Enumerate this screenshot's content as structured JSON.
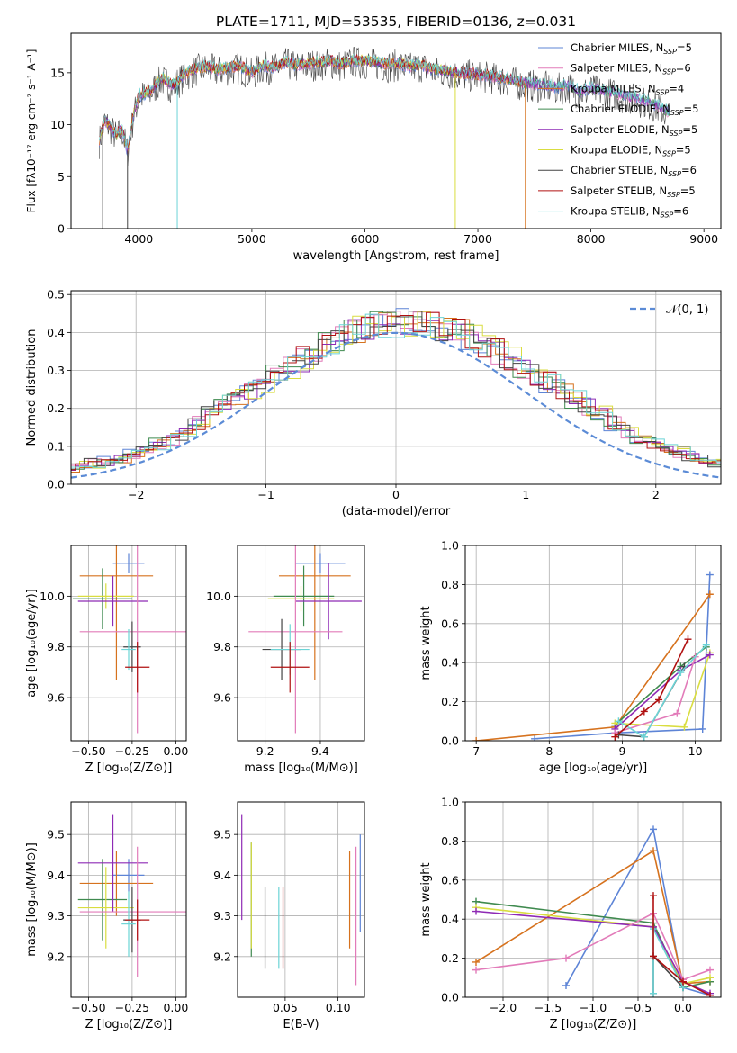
{
  "chart_data": [
    {
      "id": "spectrum",
      "type": "line",
      "title": "PLATE=1711, MJD=53535, FIBERID=0136, z=0.031",
      "xlabel": "wavelength [Angstrom, rest frame]",
      "ylabel": "Flux [fλ10⁻¹⁷ erg cm⁻² s⁻¹ A⁻¹]",
      "xlim": [
        3400,
        9150
      ],
      "ylim": [
        0,
        18.8
      ],
      "xticks": [
        4000,
        5000,
        6000,
        7000,
        8000,
        9000
      ],
      "yticks": [
        0,
        5,
        10,
        15
      ],
      "grid": false,
      "legend_position": "right",
      "legend": [
        {
          "label": "Chabrier MILES, N_SSP=5",
          "color": "#5d84d6"
        },
        {
          "label": "Salpeter MILES, N_SSP=6",
          "color": "#e27bb9"
        },
        {
          "label": "Kroupa MILES, N_SSP=4",
          "color": "#d6721e"
        },
        {
          "label": "Chabrier ELODIE, N_SSP=5",
          "color": "#3f8a4f"
        },
        {
          "label": "Salpeter ELODIE, N_SSP=5",
          "color": "#8e2ab5"
        },
        {
          "label": "Kroupa ELODIE, N_SSP=5",
          "color": "#d9dd40"
        },
        {
          "label": "Chabrier STELIB, N_SSP=6",
          "color": "#444444"
        },
        {
          "label": "Salpeter STELIB, N_SSP=5",
          "color": "#b01010"
        },
        {
          "label": "Kroupa STELIB, N_SSP=6",
          "color": "#6cd4d6"
        }
      ],
      "x": [
        3650,
        3700,
        3750,
        3800,
        3850,
        3900,
        3950,
        4000,
        4100,
        4200,
        4300,
        4400,
        4500,
        4600,
        4700,
        4800,
        4900,
        5000,
        5100,
        5200,
        5300,
        5400,
        5500,
        5600,
        5700,
        5800,
        5900,
        6000,
        6100,
        6200,
        6300,
        6400,
        6500,
        6600,
        6700,
        6800,
        6900,
        7000,
        7100,
        7200,
        7300,
        7400,
        7500,
        7600,
        7700,
        7800,
        7900,
        8000,
        8100,
        8200,
        8300,
        8400,
        8500,
        8600,
        8700
      ],
      "y": [
        8.5,
        10.5,
        9.8,
        9.0,
        9.6,
        7.5,
        10.8,
        12.8,
        13.2,
        14.5,
        13.8,
        14.8,
        15.4,
        15.6,
        15.3,
        15.5,
        15.6,
        15.0,
        15.7,
        15.5,
        16.0,
        15.7,
        15.9,
        16.0,
        16.1,
        15.8,
        16.2,
        16.1,
        16.0,
        15.8,
        15.9,
        15.6,
        15.8,
        15.3,
        15.2,
        15.0,
        14.9,
        14.8,
        14.7,
        14.5,
        14.3,
        14.0,
        13.9,
        13.8,
        13.6,
        13.8,
        13.2,
        13.5,
        13.3,
        13.1,
        12.8,
        12.6,
        12.2,
        11.8,
        11.0
      ],
      "dropouts": [
        {
          "x": 3680,
          "color": "#444444"
        },
        {
          "x": 3900,
          "color": "#444444"
        },
        {
          "x": 4340,
          "color": "#6cd4d6"
        },
        {
          "x": 6800,
          "color": "#d9dd40"
        },
        {
          "x": 7420,
          "color": "#d6721e"
        }
      ]
    },
    {
      "id": "residuals",
      "type": "step",
      "xlabel": "(data-model)/error",
      "ylabel": "Normed distribution",
      "xlim": [
        -2.5,
        2.5
      ],
      "ylim": [
        0,
        0.51
      ],
      "xticks": [
        -2,
        -1,
        0,
        1,
        2
      ],
      "yticks": [
        0.0,
        0.1,
        0.2,
        0.3,
        0.4,
        0.5
      ],
      "grid": true,
      "legend_position": "top-right",
      "legend": [
        {
          "label": "𝒩(0, 1)",
          "color": "#5b8bd6",
          "style": "dashed"
        }
      ],
      "bin_width": 0.1,
      "base_heights": [
        0.015,
        0.02,
        0.025,
        0.03,
        0.04,
        0.05,
        0.055,
        0.06,
        0.07,
        0.08,
        0.095,
        0.105,
        0.12,
        0.135,
        0.16,
        0.185,
        0.21,
        0.225,
        0.25,
        0.27,
        0.29,
        0.31,
        0.33,
        0.35,
        0.37,
        0.39,
        0.405,
        0.415,
        0.42,
        0.425,
        0.425,
        0.425,
        0.42,
        0.415,
        0.405,
        0.39,
        0.37,
        0.35,
        0.33,
        0.31,
        0.29,
        0.27,
        0.25,
        0.225,
        0.205,
        0.185,
        0.16,
        0.14,
        0.125,
        0.11,
        0.095,
        0.085,
        0.075,
        0.065,
        0.055,
        0.05,
        0.04,
        0.035,
        0.03,
        0.025
      ],
      "gaussian_mu": 0,
      "gaussian_sigma": 1
    },
    {
      "id": "age_vs_Z",
      "type": "errorbar",
      "xlabel": "Z [log₁₀(Z/Z⊙)]",
      "ylabel": "age  [log₁₀(age/yr)]",
      "xlim": [
        -0.6,
        0.06
      ],
      "ylim": [
        9.43,
        10.2
      ],
      "xticks": [
        -0.5,
        -0.25,
        0.0
      ],
      "yticks": [
        9.6,
        9.8,
        10.0
      ],
      "grid": true,
      "points": [
        {
          "x": -0.27,
          "y": 10.13,
          "xerr": 0.09,
          "yerr": 0.04,
          "color": "#5d84d6"
        },
        {
          "x": -0.34,
          "y": 10.08,
          "xerr": 0.21,
          "yerr": 0.41,
          "color": "#d6721e"
        },
        {
          "x": -0.42,
          "y": 9.99,
          "xerr": 0.17,
          "yerr": 0.12,
          "color": "#3f8a4f"
        },
        {
          "x": -0.4,
          "y": 10.0,
          "xerr": 0.16,
          "yerr": 0.05,
          "color": "#d9dd40"
        },
        {
          "x": -0.36,
          "y": 9.98,
          "xerr": 0.2,
          "yerr": 0.1,
          "color": "#8e2ab5"
        },
        {
          "x": -0.22,
          "y": 9.86,
          "xerr": 0.33,
          "yerr": 0.4,
          "color": "#e27bb9"
        },
        {
          "x": -0.25,
          "y": 9.8,
          "xerr": 0.05,
          "yerr": 0.1,
          "color": "#444444"
        },
        {
          "x": -0.27,
          "y": 9.79,
          "xerr": 0.04,
          "yerr": 0.08,
          "color": "#6cd4d6"
        },
        {
          "x": -0.22,
          "y": 9.72,
          "xerr": 0.07,
          "yerr": 0.1,
          "color": "#b01010"
        }
      ]
    },
    {
      "id": "age_vs_mass",
      "type": "errorbar",
      "xlabel": "mass [log₁₀(M/M⊙)]",
      "ylabel": "",
      "xlim": [
        9.1,
        9.56
      ],
      "ylim": [
        9.43,
        10.2
      ],
      "xticks": [
        9.2,
        9.4
      ],
      "yticks": [
        9.6,
        9.8,
        10.0
      ],
      "grid": true,
      "points": [
        {
          "x": 9.4,
          "y": 10.13,
          "xerr": 0.09,
          "yerr": 0.04,
          "color": "#5d84d6"
        },
        {
          "x": 9.38,
          "y": 10.08,
          "xerr": 0.13,
          "yerr": 0.41,
          "color": "#d6721e"
        },
        {
          "x": 9.34,
          "y": 10.0,
          "xerr": 0.11,
          "yerr": 0.12,
          "color": "#3f8a4f"
        },
        {
          "x": 9.33,
          "y": 9.99,
          "xerr": 0.12,
          "yerr": 0.05,
          "color": "#d9dd40"
        },
        {
          "x": 9.43,
          "y": 9.98,
          "xerr": 0.12,
          "yerr": 0.15,
          "color": "#8e2ab5"
        },
        {
          "x": 9.31,
          "y": 9.86,
          "xerr": 0.17,
          "yerr": 0.4,
          "color": "#e27bb9"
        },
        {
          "x": 9.26,
          "y": 9.79,
          "xerr": 0.07,
          "yerr": 0.12,
          "color": "#444444"
        },
        {
          "x": 9.29,
          "y": 9.79,
          "xerr": 0.07,
          "yerr": 0.1,
          "color": "#6cd4d6"
        },
        {
          "x": 9.29,
          "y": 9.72,
          "xerr": 0.07,
          "yerr": 0.1,
          "color": "#b01010"
        }
      ]
    },
    {
      "id": "massweight_vs_age",
      "type": "line",
      "xlabel": "age  [log₁₀(age/yr)]",
      "ylabel": "mass weight",
      "xlim": [
        6.85,
        10.35
      ],
      "ylim": [
        0,
        1.0
      ],
      "xticks": [
        7,
        8,
        9,
        10
      ],
      "yticks": [
        0.0,
        0.2,
        0.4,
        0.6,
        0.8,
        1.0
      ],
      "grid": true,
      "series": [
        {
          "color": "#5d84d6",
          "x": [
            7.8,
            8.9,
            10.1,
            10.2
          ],
          "y": [
            0.01,
            0.04,
            0.06,
            0.85
          ]
        },
        {
          "color": "#d6721e",
          "x": [
            7.0,
            8.9,
            10.2
          ],
          "y": [
            0.0,
            0.07,
            0.75
          ]
        },
        {
          "color": "#3f8a4f",
          "x": [
            8.9,
            9.8,
            10.15
          ],
          "y": [
            0.08,
            0.38,
            0.48
          ]
        },
        {
          "color": "#d9dd40",
          "x": [
            8.9,
            9.85,
            10.2
          ],
          "y": [
            0.09,
            0.07,
            0.45
          ]
        },
        {
          "color": "#8e2ab5",
          "x": [
            8.9,
            9.8,
            10.2
          ],
          "y": [
            0.06,
            0.36,
            0.44
          ]
        },
        {
          "color": "#e27bb9",
          "x": [
            8.9,
            9.75,
            10.0
          ],
          "y": [
            0.04,
            0.14,
            0.43
          ]
        },
        {
          "color": "#444444",
          "x": [
            8.95,
            9.3,
            9.85
          ],
          "y": [
            0.03,
            0.02,
            0.38
          ]
        },
        {
          "color": "#6cd4d6",
          "x": [
            8.95,
            9.3,
            9.8,
            10.15
          ],
          "y": [
            0.1,
            0.02,
            0.35,
            0.49
          ]
        },
        {
          "color": "#b01010",
          "x": [
            8.9,
            9.3,
            9.5,
            9.9
          ],
          "y": [
            0.02,
            0.15,
            0.21,
            0.52
          ]
        }
      ]
    },
    {
      "id": "mass_vs_Z",
      "type": "errorbar",
      "xlabel": "Z [log₁₀(Z/Z⊙)]",
      "ylabel": "mass [log₁₀(M/M⊙)]",
      "xlim": [
        -0.6,
        0.06
      ],
      "ylim": [
        9.1,
        9.58
      ],
      "xticks": [
        -0.5,
        -0.25,
        0.0
      ],
      "yticks": [
        9.2,
        9.3,
        9.4,
        9.5
      ],
      "grid": true,
      "points": [
        {
          "x": -0.27,
          "y": 9.4,
          "xerr": 0.09,
          "yerr": 0.04,
          "color": "#5d84d6"
        },
        {
          "x": -0.34,
          "y": 9.38,
          "xerr": 0.21,
          "yerr": 0.08,
          "color": "#d6721e"
        },
        {
          "x": -0.42,
          "y": 9.34,
          "xerr": 0.14,
          "yerr": 0.1,
          "color": "#3f8a4f"
        },
        {
          "x": -0.4,
          "y": 9.32,
          "xerr": 0.16,
          "yerr": 0.1,
          "color": "#d9dd40"
        },
        {
          "x": -0.36,
          "y": 9.43,
          "xerr": 0.2,
          "yerr": 0.12,
          "color": "#8e2ab5"
        },
        {
          "x": -0.22,
          "y": 9.31,
          "xerr": 0.33,
          "yerr": 0.16,
          "color": "#e27bb9"
        },
        {
          "x": -0.25,
          "y": 9.29,
          "xerr": 0.05,
          "yerr": 0.08,
          "color": "#444444"
        },
        {
          "x": -0.27,
          "y": 9.28,
          "xerr": 0.04,
          "yerr": 0.08,
          "color": "#6cd4d6"
        },
        {
          "x": -0.22,
          "y": 9.29,
          "xerr": 0.07,
          "yerr": 0.05,
          "color": "#b01010"
        }
      ]
    },
    {
      "id": "mass_vs_EBV",
      "type": "errorbar",
      "xlabel": "E(B-V)",
      "ylabel": "",
      "xlim": [
        0.005,
        0.125
      ],
      "ylim": [
        9.1,
        9.58
      ],
      "xticks": [
        0.05,
        0.1
      ],
      "yticks": [
        9.2,
        9.3,
        9.4,
        9.5
      ],
      "grid": true,
      "points": [
        {
          "x": 0.121,
          "y": 9.38,
          "xerr": 0,
          "yerr": 0.12,
          "color": "#5d84d6"
        },
        {
          "x": 0.111,
          "y": 9.34,
          "xerr": 0,
          "yerr": 0.12,
          "color": "#d6721e"
        },
        {
          "x": 0.018,
          "y": 9.34,
          "xerr": 0,
          "yerr": 0.14,
          "color": "#3f8a4f"
        },
        {
          "x": 0.018,
          "y": 9.35,
          "xerr": 0,
          "yerr": 0.13,
          "color": "#d9dd40"
        },
        {
          "x": 0.009,
          "y": 9.42,
          "xerr": 0,
          "yerr": 0.13,
          "color": "#8e2ab5"
        },
        {
          "x": 0.117,
          "y": 9.3,
          "xerr": 0,
          "yerr": 0.17,
          "color": "#e27bb9"
        },
        {
          "x": 0.031,
          "y": 9.27,
          "xerr": 0,
          "yerr": 0.1,
          "color": "#444444"
        },
        {
          "x": 0.044,
          "y": 9.27,
          "xerr": 0,
          "yerr": 0.1,
          "color": "#6cd4d6"
        },
        {
          "x": 0.048,
          "y": 9.27,
          "xerr": 0,
          "yerr": 0.1,
          "color": "#b01010"
        }
      ]
    },
    {
      "id": "massweight_vs_Z",
      "type": "line",
      "xlabel": "Z [log₁₀(Z/Z⊙)]",
      "ylabel": "mass weight",
      "xlim": [
        -2.42,
        0.42
      ],
      "ylim": [
        0,
        1.0
      ],
      "xticks": [
        -2.0,
        -1.5,
        -1.0,
        -0.5,
        0.0
      ],
      "yticks": [
        0.0,
        0.2,
        0.4,
        0.6,
        0.8,
        1.0
      ],
      "grid": true,
      "series": [
        {
          "color": "#5d84d6",
          "x": [
            -1.3,
            -0.33,
            0.0,
            0.3
          ],
          "y": [
            0.06,
            0.86,
            0.05,
            0.01
          ]
        },
        {
          "color": "#d6721e",
          "x": [
            -2.3,
            -0.33,
            0.0,
            0.3
          ],
          "y": [
            0.18,
            0.75,
            0.07,
            0.08
          ]
        },
        {
          "color": "#3f8a4f",
          "x": [
            -2.3,
            -0.33,
            0.0,
            0.3
          ],
          "y": [
            0.49,
            0.38,
            0.05,
            0.08
          ]
        },
        {
          "color": "#d9dd40",
          "x": [
            -2.3,
            -0.33,
            0.0,
            0.3
          ],
          "y": [
            0.46,
            0.36,
            0.07,
            0.1
          ]
        },
        {
          "color": "#8e2ab5",
          "x": [
            -2.3,
            -0.33,
            0.0,
            0.3
          ],
          "y": [
            0.44,
            0.36,
            0.08,
            0.02
          ]
        },
        {
          "color": "#e27bb9",
          "x": [
            -2.3,
            -1.3,
            -0.33,
            0.0,
            0.3
          ],
          "y": [
            0.14,
            0.2,
            0.43,
            0.09,
            0.14
          ]
        },
        {
          "color": "#444444",
          "x": [
            -0.33,
            -0.33,
            0.0
          ],
          "y": [
            0.02,
            0.21,
            0.05
          ]
        },
        {
          "color": "#6cd4d6",
          "x": [
            -0.33,
            -0.33,
            0.0
          ],
          "y": [
            0.02,
            0.35,
            0.05
          ]
        },
        {
          "color": "#b01010",
          "x": [
            -0.33,
            -0.33,
            0.0,
            0.3
          ],
          "y": [
            0.52,
            0.21,
            0.08,
            0.01
          ]
        }
      ]
    }
  ]
}
